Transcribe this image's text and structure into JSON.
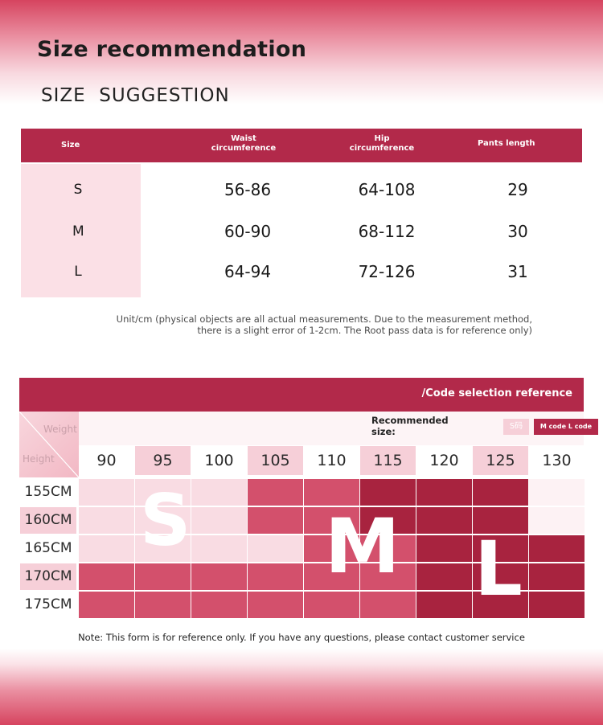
{
  "header": {
    "title": "Size recommendation",
    "subtitle": "SIZE  SUGGESTION"
  },
  "size_table": {
    "columns": {
      "size": "Size",
      "waist": "Waist\ncircumference",
      "hip": "Hip\ncircumference",
      "pants": "Pants length"
    },
    "rows": [
      {
        "size": "S",
        "waist": "56-86",
        "hip": "64-108",
        "pants": "29"
      },
      {
        "size": "M",
        "waist": "60-90",
        "hip": "68-112",
        "pants": "30"
      },
      {
        "size": "L",
        "waist": "64-94",
        "hip": "72-126",
        "pants": "31"
      }
    ],
    "note": "Unit/cm (physical objects are all actual measurements. Due to the measurement method,\nthere is a slight error of 1-2cm. The Root pass data is for reference only)"
  },
  "code_reference": {
    "title": "/Code selection reference",
    "weight_label": "Weight",
    "height_label": "Height",
    "recommended_label": "Recommended\nsize:",
    "legend_s": "S码",
    "legend_ml": "M code L code",
    "weights": [
      "90",
      "95",
      "100",
      "105",
      "110",
      "115",
      "120",
      "125",
      "130"
    ],
    "heights": [
      "155CM",
      "160CM",
      "165CM",
      "170CM",
      "175CM"
    ],
    "grid": [
      [
        "S",
        "S",
        "S",
        "M",
        "M",
        "L",
        "L",
        "L",
        ""
      ],
      [
        "S",
        "S",
        "S",
        "M",
        "M",
        "L",
        "L",
        "L",
        ""
      ],
      [
        "S",
        "S",
        "S",
        "S",
        "M",
        "M",
        "L",
        "L",
        "L"
      ],
      [
        "M",
        "M",
        "M",
        "M",
        "M",
        "M",
        "L",
        "L",
        "L"
      ],
      [
        "M",
        "M",
        "M",
        "M",
        "M",
        "M",
        "L",
        "L",
        "L"
      ]
    ],
    "colors": {
      "S": "#f9dce3",
      "M": "#d3506c",
      "L": "#a8233f",
      "empty": "#fdf2f4",
      "accent": "#b2294a"
    },
    "big_letters": [
      "S",
      "M",
      "L"
    ]
  },
  "footer": {
    "note": "Note: This form is for reference only. If you have any questions, please contact customer service"
  }
}
